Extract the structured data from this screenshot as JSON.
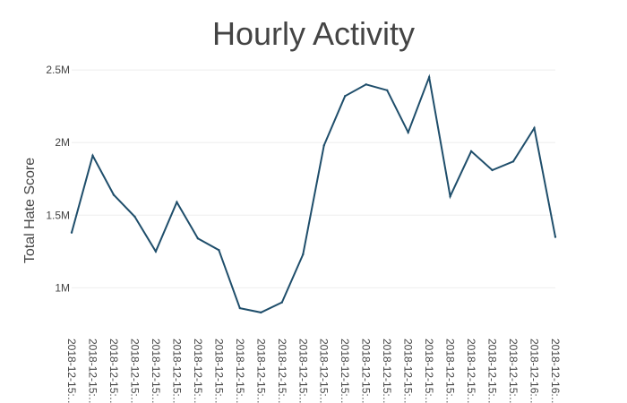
{
  "chart_data": {
    "type": "line",
    "title": "Hourly Activity",
    "xlabel": "",
    "ylabel": "Total Hate Score",
    "ylim": [
      700000,
      2550000
    ],
    "yticks": [
      {
        "value": 1000000,
        "label": "1M"
      },
      {
        "value": 1500000,
        "label": "1.5M"
      },
      {
        "value": 2000000,
        "label": "2M"
      },
      {
        "value": 2500000,
        "label": "2.5M"
      }
    ],
    "grid": true,
    "line_color": "#1f4e6b",
    "x": [
      "2018-12-15:…",
      "2018-12-15:…",
      "2018-12-15:…",
      "2018-12-15:…",
      "2018-12-15:…",
      "2018-12-15:…",
      "2018-12-15:…",
      "2018-12-15:…",
      "2018-12-15:…",
      "2018-12-15:…",
      "2018-12-15:…",
      "2018-12-15:…",
      "2018-12-15:…",
      "2018-12-15:…",
      "2018-12-15:…",
      "2018-12-15:…",
      "2018-12-15:…",
      "2018-12-15:…",
      "2018-12-15:…",
      "2018-12-15:…",
      "2018-12-15:…",
      "2018-12-15:…",
      "2018-12-16:…",
      "2018-12-16:…"
    ],
    "values": [
      1380000,
      1910000,
      1640000,
      1490000,
      1250000,
      1590000,
      1340000,
      1260000,
      860000,
      830000,
      900000,
      1230000,
      1980000,
      2320000,
      2400000,
      2360000,
      2070000,
      2450000,
      1630000,
      1940000,
      1810000,
      1870000,
      2100000,
      1350000
    ]
  }
}
